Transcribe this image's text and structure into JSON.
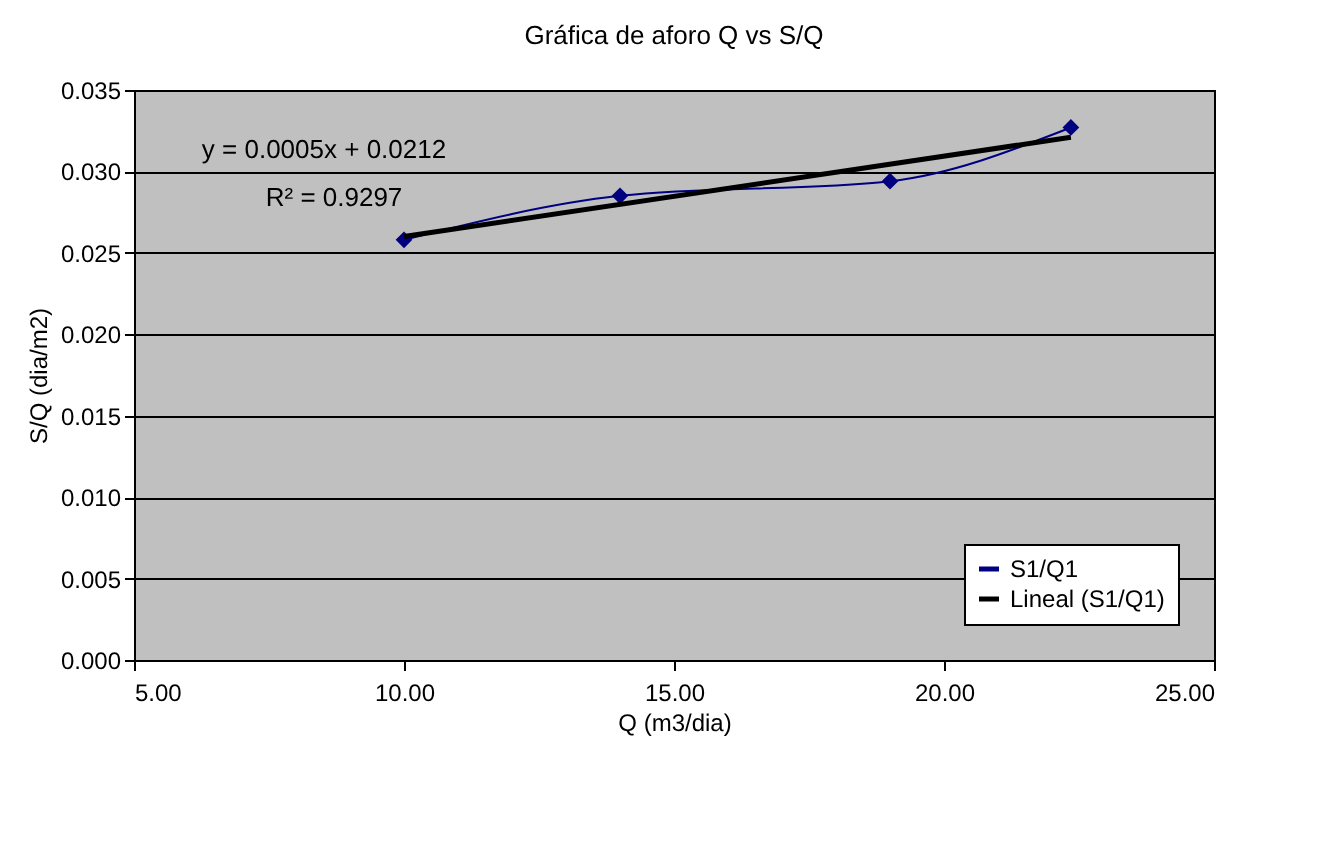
{
  "chart_data": {
    "type": "line",
    "title": "Gráfica de aforo Q vs S/Q",
    "xlabel": "Q (m3/dia)",
    "ylabel": "S/Q (dia/m2)",
    "x": [
      10,
      14,
      19,
      22.35
    ],
    "series": [
      {
        "name": "S1/Q1",
        "color": "#000080",
        "marker": "diamond",
        "values": [
          0.0258,
          0.0285,
          0.0294,
          0.0327
        ]
      },
      {
        "name": "Lineal (S1/Q1)",
        "color": "#000000",
        "marker": "none",
        "x": [
          10,
          22.35
        ],
        "values": [
          0.026,
          0.0321
        ]
      }
    ],
    "xlim": [
      5,
      25
    ],
    "ylim": [
      0,
      0.035
    ],
    "xticks": [
      {
        "value": 5,
        "label": "5.00"
      },
      {
        "value": 10,
        "label": "10.00"
      },
      {
        "value": 15,
        "label": "15.00"
      },
      {
        "value": 20,
        "label": "20.00"
      },
      {
        "value": 25,
        "label": "25.00"
      }
    ],
    "yticks": [
      {
        "value": 0,
        "label": "0.000"
      },
      {
        "value": 0.005,
        "label": "0.005"
      },
      {
        "value": 0.01,
        "label": "0.010"
      },
      {
        "value": 0.015,
        "label": "0.015"
      },
      {
        "value": 0.02,
        "label": "0.020"
      },
      {
        "value": 0.025,
        "label": "0.025"
      },
      {
        "value": 0.03,
        "label": "0.030"
      },
      {
        "value": 0.035,
        "label": "0.035"
      }
    ],
    "annotations": [
      "y = 0.0005x + 0.0212",
      "R² = 0.9297"
    ],
    "grid": "y",
    "legend": "bottom right"
  }
}
